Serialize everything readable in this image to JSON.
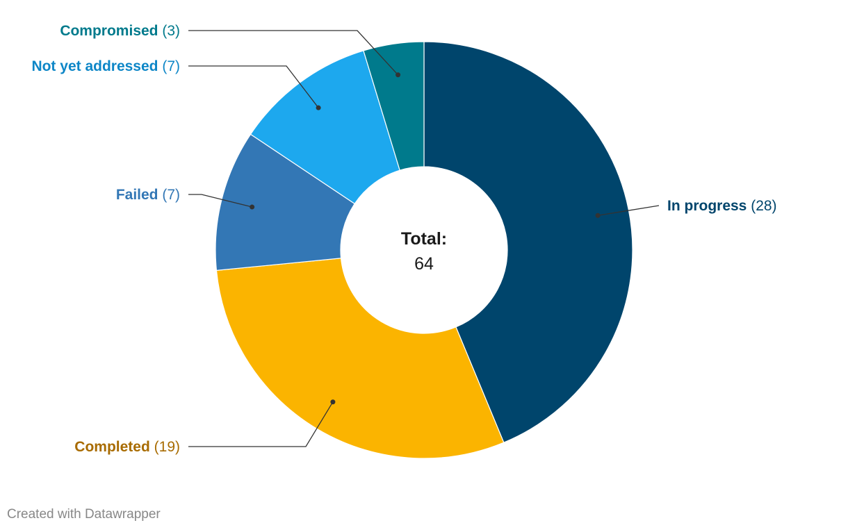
{
  "chart_data": {
    "type": "pie",
    "variant": "donut",
    "categories": [
      "In progress",
      "Completed",
      "Failed",
      "Not yet addressed",
      "Compromised"
    ],
    "values": [
      28,
      19,
      7,
      7,
      3
    ],
    "colors": [
      "#00456c",
      "#fbb400",
      "#3377b5",
      "#1da8ee",
      "#007a8c"
    ],
    "label_colors": [
      "#00456c",
      "#a86b00",
      "#3377b5",
      "#0d86c7",
      "#007a8c"
    ],
    "slices": [
      {
        "name": "In progress",
        "value": 28,
        "value_text": "(28)"
      },
      {
        "name": "Completed",
        "value": 19,
        "value_text": "(19)"
      },
      {
        "name": "Failed",
        "value": 7,
        "value_text": "(7)"
      },
      {
        "name": "Not yet addressed",
        "value": 7,
        "value_text": "(7)"
      },
      {
        "name": "Compromised",
        "value": 3,
        "value_text": "(3)"
      }
    ],
    "center": {
      "title": "Total:",
      "value": "64"
    }
  },
  "footer": "Created with Datawrapper"
}
